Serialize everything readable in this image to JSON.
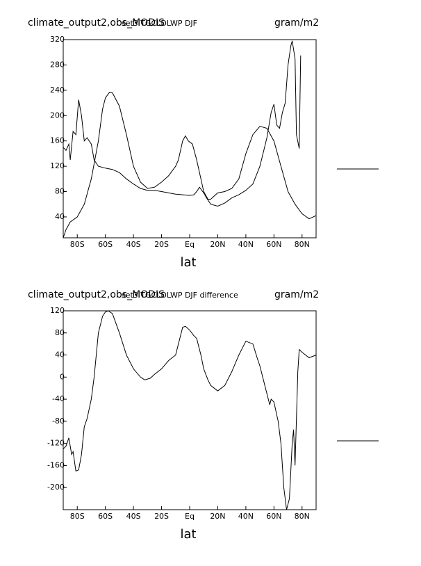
{
  "chart_data": [
    {
      "type": "line",
      "title": "climate_output2,obs_MODIS",
      "subtitle": "set3 TGCLDLWP DJF",
      "units": "gram/m2",
      "xlabel": "lat",
      "xlim": [
        -90,
        90
      ],
      "xticks": [
        {
          "value": -80,
          "label": "80S"
        },
        {
          "value": -60,
          "label": "60S"
        },
        {
          "value": -40,
          "label": "40S"
        },
        {
          "value": -20,
          "label": "20S"
        },
        {
          "value": 0,
          "label": "Eq"
        },
        {
          "value": 20,
          "label": "20N"
        },
        {
          "value": 40,
          "label": "40N"
        },
        {
          "value": 60,
          "label": "60N"
        },
        {
          "value": 80,
          "label": "80N"
        }
      ],
      "ylim": [
        7,
        320
      ],
      "yticks": [
        40,
        80,
        120,
        160,
        200,
        240,
        280,
        320
      ],
      "series": [
        {
          "color": "#000000",
          "x": [
            -90,
            -88,
            -86,
            -85,
            -83,
            -81,
            -79,
            -77,
            -75,
            -73,
            -70,
            -68,
            -65,
            -60,
            -55,
            -50,
            -45,
            -40,
            -35,
            -30,
            -25,
            -20,
            -15,
            -10,
            -5,
            0,
            3,
            5,
            7,
            10,
            12,
            15,
            20,
            25,
            30,
            35,
            40,
            45,
            50,
            55,
            58,
            60,
            62,
            64,
            66,
            68,
            70,
            72,
            73,
            75,
            76,
            78,
            79
          ],
          "values": [
            150,
            145,
            155,
            130,
            175,
            170,
            225,
            200,
            160,
            165,
            155,
            130,
            120,
            117,
            115,
            110,
            100,
            92,
            85,
            82,
            82,
            80,
            78,
            76,
            75,
            74,
            75,
            80,
            87,
            78,
            70,
            60,
            57,
            62,
            70,
            75,
            82,
            92,
            120,
            165,
            205,
            218,
            185,
            180,
            205,
            220,
            280,
            310,
            318,
            290,
            170,
            148,
            295
          ]
        },
        {
          "color": "#000000",
          "x": [
            -90,
            -88,
            -85,
            -80,
            -75,
            -70,
            -65,
            -62,
            -60,
            -57,
            -55,
            -50,
            -45,
            -40,
            -35,
            -30,
            -25,
            -20,
            -15,
            -10,
            -8,
            -5,
            -3,
            -1,
            2,
            5,
            8,
            10,
            13,
            15,
            20,
            25,
            30,
            35,
            40,
            45,
            50,
            55,
            60,
            65,
            70,
            75,
            80,
            85,
            90
          ],
          "values": [
            7,
            20,
            32,
            40,
            60,
            100,
            160,
            210,
            228,
            237,
            236,
            215,
            170,
            120,
            95,
            85,
            87,
            95,
            105,
            120,
            130,
            160,
            168,
            160,
            155,
            130,
            100,
            80,
            68,
            68,
            78,
            80,
            85,
            100,
            140,
            170,
            183,
            180,
            160,
            120,
            80,
            60,
            45,
            37,
            42
          ]
        }
      ]
    },
    {
      "type": "line",
      "title": "climate_output2,obs_MODIS",
      "subtitle": "set3 TGCLDLWP DJF difference",
      "units": "gram/m2",
      "xlabel": "lat",
      "xlim": [
        -90,
        90
      ],
      "xticks": [
        {
          "value": -80,
          "label": "80S"
        },
        {
          "value": -60,
          "label": "60S"
        },
        {
          "value": -40,
          "label": "40S"
        },
        {
          "value": -20,
          "label": "20S"
        },
        {
          "value": 0,
          "label": "Eq"
        },
        {
          "value": 20,
          "label": "20N"
        },
        {
          "value": 40,
          "label": "40N"
        },
        {
          "value": 60,
          "label": "60N"
        },
        {
          "value": 80,
          "label": "80N"
        }
      ],
      "ylim": [
        -240,
        120
      ],
      "yticks": [
        -200,
        -160,
        -120,
        -80,
        -40,
        0,
        40,
        80,
        120
      ],
      "series": [
        {
          "color": "#000000",
          "x": [
            -90,
            -88,
            -86,
            -84,
            -83,
            -81,
            -79,
            -77,
            -75,
            -73,
            -70,
            -68,
            -65,
            -62,
            -60,
            -58,
            -55,
            -50,
            -45,
            -40,
            -35,
            -32,
            -28,
            -25,
            -20,
            -15,
            -10,
            -8,
            -5,
            -3,
            0,
            3,
            5,
            8,
            10,
            13,
            15,
            20,
            25,
            30,
            35,
            40,
            45,
            48,
            50,
            55,
            57,
            58,
            60,
            63,
            65,
            67,
            69,
            71,
            73,
            74,
            75,
            77,
            78,
            80,
            85,
            90
          ],
          "values": [
            -130,
            -125,
            -110,
            -140,
            -135,
            -170,
            -168,
            -140,
            -90,
            -75,
            -40,
            0,
            80,
            110,
            118,
            120,
            115,
            80,
            40,
            15,
            0,
            -5,
            -2,
            5,
            15,
            30,
            40,
            60,
            90,
            92,
            85,
            75,
            70,
            40,
            15,
            -5,
            -15,
            -25,
            -15,
            10,
            40,
            65,
            60,
            35,
            20,
            -30,
            -50,
            -40,
            -45,
            -80,
            -120,
            -200,
            -240,
            -220,
            -120,
            -95,
            -160,
            10,
            50,
            45,
            35,
            40
          ]
        }
      ]
    }
  ]
}
